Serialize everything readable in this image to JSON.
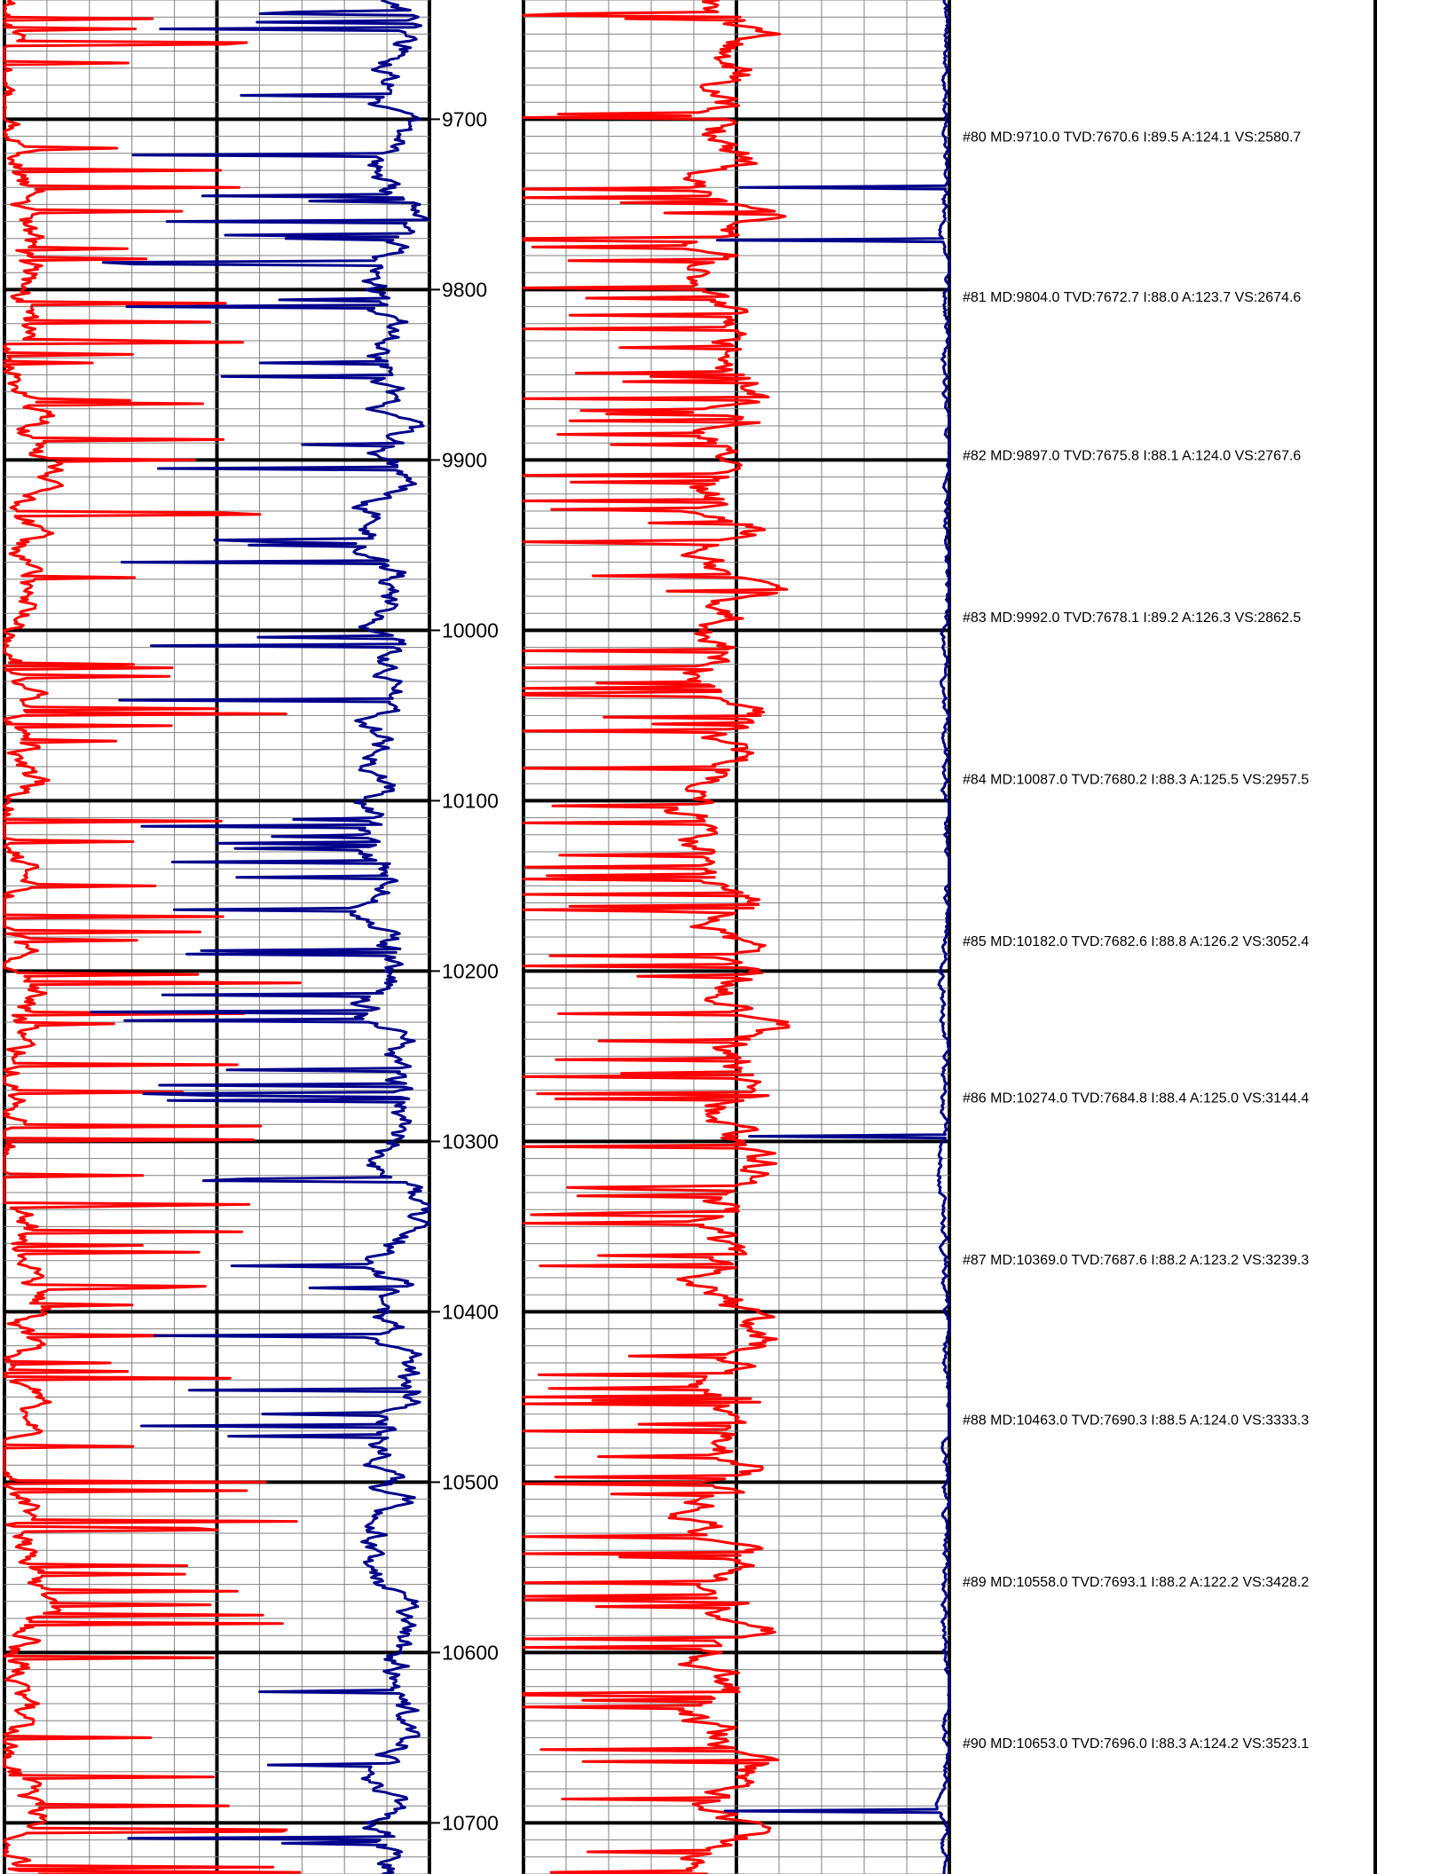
{
  "chart_data": {
    "type": "line",
    "chart_kind": "well-log strip (depth track)",
    "depth_axis": {
      "range": [
        9630,
        10730
      ],
      "major_step": 100,
      "minor_step": 10,
      "tick_labels": [
        "9700",
        "9800",
        "9900",
        "10000",
        "10100",
        "10200",
        "10300",
        "10400",
        "10500",
        "10600",
        "10700"
      ]
    },
    "tracks": [
      {
        "name": "track-1",
        "xlim": [
          0,
          100
        ],
        "major_step": 50,
        "minor_step": 10
      },
      {
        "name": "track-2",
        "xlim": [
          0,
          100
        ],
        "major_step": 50,
        "minor_step": 10
      }
    ],
    "series": [
      {
        "track": 0,
        "color": "#ff0000",
        "values": []
      },
      {
        "track": 0,
        "color": "#00008b",
        "values": []
      },
      {
        "track": 1,
        "color": "#ff0000",
        "values": []
      },
      {
        "track": 1,
        "color": "#00008b",
        "values": []
      }
    ],
    "surveys": [
      {
        "md": 9710.0,
        "label": "#80 MD:9710.0 TVD:7670.6 I:89.5 A:124.1 VS:2580.7"
      },
      {
        "md": 9804.0,
        "label": "#81 MD:9804.0 TVD:7672.7 I:88.0 A:123.7 VS:2674.6"
      },
      {
        "md": 9897.0,
        "label": "#82 MD:9897.0 TVD:7675.8 I:88.1 A:124.0 VS:2767.6"
      },
      {
        "md": 9992.0,
        "label": "#83 MD:9992.0 TVD:7678.1 I:89.2 A:126.3 VS:2862.5"
      },
      {
        "md": 10087.0,
        "label": "#84 MD:10087.0 TVD:7680.2 I:88.3 A:125.5 VS:2957.5"
      },
      {
        "md": 10182.0,
        "label": "#85 MD:10182.0 TVD:7682.6 I:88.8 A:126.2 VS:3052.4"
      },
      {
        "md": 10274.0,
        "label": "#86 MD:10274.0 TVD:7684.8 I:88.4 A:125.0 VS:3144.4"
      },
      {
        "md": 10369.0,
        "label": "#87 MD:10369.0 TVD:7687.6 I:88.2 A:123.2 VS:3239.3"
      },
      {
        "md": 10463.0,
        "label": "#88 MD:10463.0 TVD:7690.3 I:88.5 A:124.0 VS:3333.3"
      },
      {
        "md": 10558.0,
        "label": "#89 MD:10558.0 TVD:7693.1 I:88.2 A:122.2 VS:3428.2"
      },
      {
        "md": 10653.0,
        "label": "#90 MD:10653.0 TVD:7696.0 I:88.3 A:124.2 VS:3523.1"
      }
    ]
  }
}
